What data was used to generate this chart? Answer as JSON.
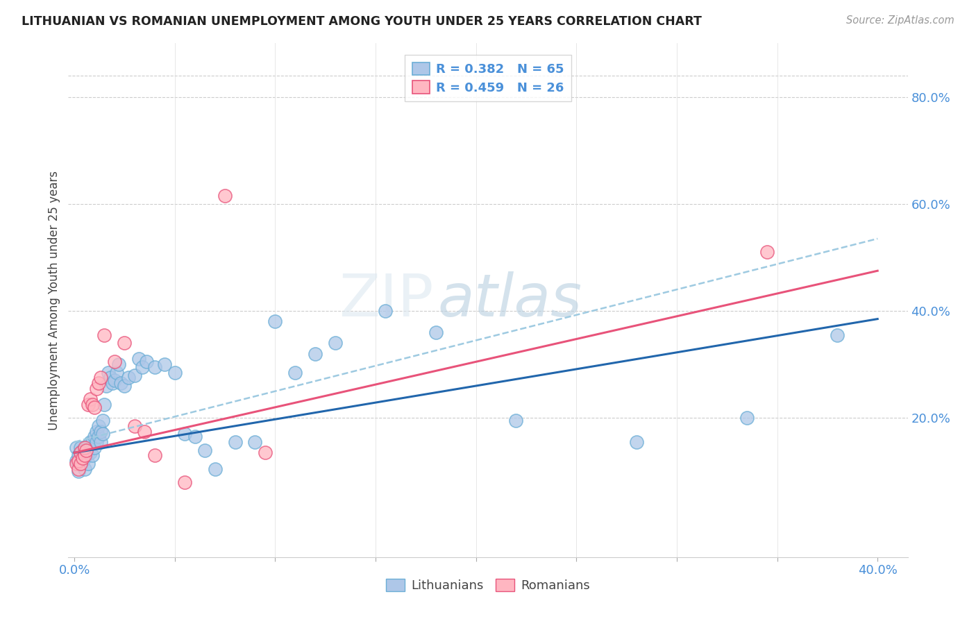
{
  "title": "LITHUANIAN VS ROMANIAN UNEMPLOYMENT AMONG YOUTH UNDER 25 YEARS CORRELATION CHART",
  "source": "Source: ZipAtlas.com",
  "ylabel": "Unemployment Among Youth under 25 years",
  "xlim": [
    -0.003,
    0.415
  ],
  "ylim": [
    -0.06,
    0.9
  ],
  "xticks": [
    0.0,
    0.05,
    0.1,
    0.15,
    0.2,
    0.25,
    0.3,
    0.35,
    0.4
  ],
  "xticklabels": [
    "0.0%",
    "",
    "",
    "",
    "",
    "",
    "",
    "",
    "40.0%"
  ],
  "right_yticks": [
    0.2,
    0.4,
    0.6,
    0.8
  ],
  "right_yticklabels": [
    "20.0%",
    "40.0%",
    "60.0%",
    "80.0%"
  ],
  "axis_color": "#4a90d9",
  "watermark_zip": "ZIP",
  "watermark_atlas": "atlas",
  "blue_scatter_face": "#aec7e8",
  "blue_scatter_edge": "#6baed6",
  "pink_scatter_face": "#ffb6c1",
  "pink_scatter_edge": "#e8537a",
  "blue_line_color": "#2166ac",
  "pink_line_color": "#e8537a",
  "dashed_line_color": "#9ecae1",
  "lit_x": [
    0.001,
    0.001,
    0.002,
    0.002,
    0.003,
    0.003,
    0.003,
    0.004,
    0.004,
    0.005,
    0.005,
    0.005,
    0.006,
    0.006,
    0.007,
    0.007,
    0.007,
    0.008,
    0.008,
    0.009,
    0.009,
    0.01,
    0.01,
    0.011,
    0.011,
    0.012,
    0.012,
    0.013,
    0.013,
    0.014,
    0.014,
    0.015,
    0.016,
    0.017,
    0.018,
    0.019,
    0.02,
    0.021,
    0.022,
    0.023,
    0.025,
    0.027,
    0.03,
    0.032,
    0.034,
    0.036,
    0.04,
    0.045,
    0.05,
    0.055,
    0.06,
    0.065,
    0.07,
    0.08,
    0.09,
    0.1,
    0.11,
    0.12,
    0.13,
    0.155,
    0.18,
    0.22,
    0.28,
    0.335,
    0.38
  ],
  "lit_y": [
    0.12,
    0.145,
    0.1,
    0.13,
    0.115,
    0.135,
    0.145,
    0.12,
    0.14,
    0.105,
    0.125,
    0.14,
    0.13,
    0.145,
    0.115,
    0.135,
    0.15,
    0.135,
    0.155,
    0.13,
    0.155,
    0.145,
    0.165,
    0.155,
    0.175,
    0.165,
    0.185,
    0.155,
    0.175,
    0.17,
    0.195,
    0.225,
    0.26,
    0.285,
    0.275,
    0.265,
    0.27,
    0.285,
    0.3,
    0.265,
    0.26,
    0.275,
    0.28,
    0.31,
    0.295,
    0.305,
    0.295,
    0.3,
    0.285,
    0.17,
    0.165,
    0.14,
    0.105,
    0.155,
    0.155,
    0.38,
    0.285,
    0.32,
    0.34,
    0.4,
    0.36,
    0.195,
    0.155,
    0.2,
    0.355
  ],
  "rom_x": [
    0.001,
    0.002,
    0.002,
    0.003,
    0.003,
    0.004,
    0.005,
    0.005,
    0.006,
    0.007,
    0.008,
    0.009,
    0.01,
    0.011,
    0.012,
    0.013,
    0.015,
    0.02,
    0.025,
    0.03,
    0.035,
    0.04,
    0.055,
    0.075,
    0.095,
    0.345
  ],
  "rom_y": [
    0.115,
    0.105,
    0.12,
    0.115,
    0.135,
    0.125,
    0.13,
    0.145,
    0.14,
    0.225,
    0.235,
    0.225,
    0.22,
    0.255,
    0.265,
    0.275,
    0.355,
    0.305,
    0.34,
    0.185,
    0.175,
    0.13,
    0.08,
    0.615,
    0.135,
    0.51
  ],
  "blue_trend_x0": 0.0,
  "blue_trend_x1": 0.4,
  "blue_trend_y0": 0.135,
  "blue_trend_y1": 0.385,
  "pink_trend_x0": 0.0,
  "pink_trend_x1": 0.4,
  "pink_trend_y0": 0.135,
  "pink_trend_y1": 0.475,
  "dashed_trend_x0": 0.0,
  "dashed_trend_x1": 0.4,
  "dashed_trend_y0": 0.155,
  "dashed_trend_y1": 0.535
}
